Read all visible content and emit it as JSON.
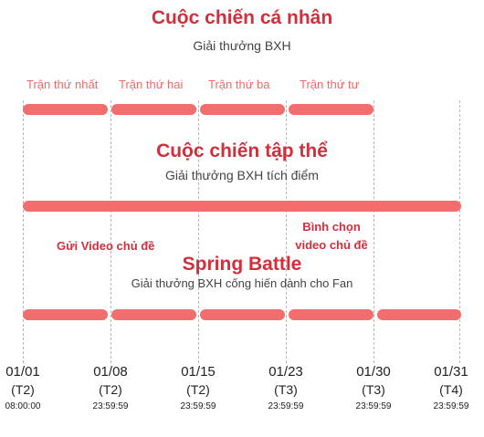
{
  "section1": {
    "title": "Cuộc chiến cá nhân",
    "subtitle": "Giải thưởng BXH",
    "rounds": [
      "Trận thứ nhất",
      "Trận thứ hai",
      "Trận thứ ba",
      "Trận thứ tư"
    ]
  },
  "section2": {
    "title": "Cuộc chiến tập thể",
    "subtitle": "Giải thưởng BXH tích điểm"
  },
  "section3": {
    "title": "Spring Battle",
    "subtitle": "Giải thưởng BXH cống hiến dành cho Fan",
    "label_left": "Gửi Video chủ đề",
    "label_right_line1": "Bình chọn",
    "label_right_line2": "video chủ đề"
  },
  "timeline": [
    {
      "date": "01/01",
      "weekday": "(T2)",
      "time": "08:00:00"
    },
    {
      "date": "01/08",
      "weekday": "(T2)",
      "time": "23:59:59"
    },
    {
      "date": "01/15",
      "weekday": "(T2)",
      "time": "23:59:59"
    },
    {
      "date": "01/23",
      "weekday": "(T3)",
      "time": "23:59:59"
    },
    {
      "date": "01/30",
      "weekday": "(T3)",
      "time": "23:59:59"
    },
    {
      "date": "01/31",
      "weekday": "(T4)",
      "time": "23:59:59"
    }
  ],
  "colors": {
    "accent": "#d0303c",
    "bar": "#f26d6d",
    "round_label": "#ee6a6a"
  }
}
